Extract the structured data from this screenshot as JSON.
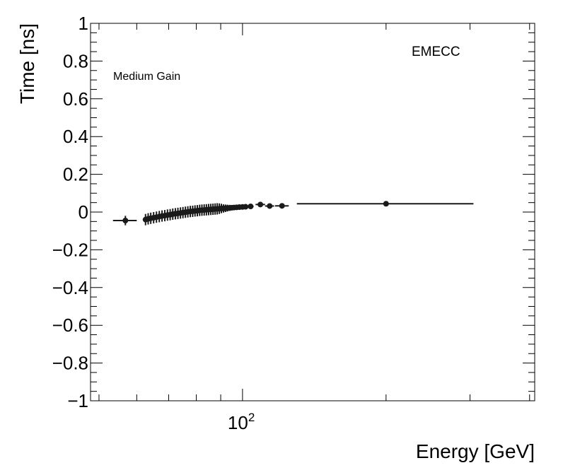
{
  "chart_data": {
    "type": "scatter",
    "title": "",
    "annotations": [
      "EMECC",
      "Medium Gain"
    ],
    "xlabel": "Energy [GeV]",
    "ylabel": "Time [ns]",
    "xscale": "log",
    "xlim": [
      48,
      410
    ],
    "ylim": [
      -1,
      1
    ],
    "x_tick_labels": [
      {
        "value": 100,
        "base": "10",
        "exp": "2"
      }
    ],
    "x_minor_ticks": [
      50,
      60,
      70,
      80,
      90,
      200,
      300,
      400
    ],
    "y_ticks": [
      -1,
      -0.8,
      -0.6,
      -0.4,
      -0.2,
      0,
      0.2,
      0.4,
      0.6,
      0.8,
      1
    ],
    "y_tick_labels": [
      "−1",
      "−0.8",
      "−0.6",
      "−0.4",
      "−0.2",
      "0",
      "0.2",
      "0.4",
      "0.6",
      "0.8",
      "1"
    ],
    "grid": false,
    "marker_color": "#1a1a1a",
    "points": [
      {
        "x": 56.8,
        "y": -0.045,
        "xlo": 53.5,
        "xhi": 60.0,
        "yerr": 0.025
      },
      {
        "x": 62.6,
        "y": -0.04,
        "xlo": 62.3,
        "xhi": 62.9,
        "yerr": 0.03
      },
      {
        "x": 63.4,
        "y": -0.036,
        "xlo": 63.1,
        "xhi": 63.7,
        "yerr": 0.03
      },
      {
        "x": 64.2,
        "y": -0.033,
        "xlo": 63.9,
        "xhi": 64.5,
        "yerr": 0.03
      },
      {
        "x": 65.1,
        "y": -0.03,
        "xlo": 64.8,
        "xhi": 65.4,
        "yerr": 0.03
      },
      {
        "x": 66.0,
        "y": -0.027,
        "xlo": 65.7,
        "xhi": 66.3,
        "yerr": 0.03
      },
      {
        "x": 66.9,
        "y": -0.024,
        "xlo": 66.6,
        "xhi": 67.2,
        "yerr": 0.03
      },
      {
        "x": 67.8,
        "y": -0.021,
        "xlo": 67.5,
        "xhi": 68.1,
        "yerr": 0.03
      },
      {
        "x": 68.7,
        "y": -0.019,
        "xlo": 68.4,
        "xhi": 69.0,
        "yerr": 0.03
      },
      {
        "x": 69.6,
        "y": -0.016,
        "xlo": 69.3,
        "xhi": 69.9,
        "yerr": 0.03
      },
      {
        "x": 70.5,
        "y": -0.014,
        "xlo": 70.2,
        "xhi": 70.8,
        "yerr": 0.03
      },
      {
        "x": 71.4,
        "y": -0.011,
        "xlo": 71.1,
        "xhi": 71.7,
        "yerr": 0.03
      },
      {
        "x": 72.3,
        "y": -0.009,
        "xlo": 72.0,
        "xhi": 72.6,
        "yerr": 0.03
      },
      {
        "x": 73.2,
        "y": -0.007,
        "xlo": 72.9,
        "xhi": 73.5,
        "yerr": 0.03
      },
      {
        "x": 74.1,
        "y": -0.005,
        "xlo": 73.8,
        "xhi": 74.4,
        "yerr": 0.03
      },
      {
        "x": 75.0,
        "y": -0.003,
        "xlo": 74.7,
        "xhi": 75.3,
        "yerr": 0.03
      },
      {
        "x": 75.9,
        "y": -0.001,
        "xlo": 75.6,
        "xhi": 76.2,
        "yerr": 0.03
      },
      {
        "x": 76.8,
        "y": 0.001,
        "xlo": 76.5,
        "xhi": 77.1,
        "yerr": 0.03
      },
      {
        "x": 77.7,
        "y": 0.003,
        "xlo": 77.4,
        "xhi": 78.0,
        "yerr": 0.03
      },
      {
        "x": 78.6,
        "y": 0.004,
        "xlo": 78.3,
        "xhi": 78.9,
        "yerr": 0.03
      },
      {
        "x": 79.5,
        "y": 0.006,
        "xlo": 79.2,
        "xhi": 79.8,
        "yerr": 0.03
      },
      {
        "x": 80.4,
        "y": 0.007,
        "xlo": 80.1,
        "xhi": 80.7,
        "yerr": 0.03
      },
      {
        "x": 81.3,
        "y": 0.009,
        "xlo": 81.0,
        "xhi": 81.6,
        "yerr": 0.03
      },
      {
        "x": 82.2,
        "y": 0.01,
        "xlo": 81.9,
        "xhi": 82.5,
        "yerr": 0.03
      },
      {
        "x": 83.1,
        "y": 0.011,
        "xlo": 82.8,
        "xhi": 83.4,
        "yerr": 0.03
      },
      {
        "x": 84.0,
        "y": 0.012,
        "xlo": 83.7,
        "xhi": 84.3,
        "yerr": 0.03
      },
      {
        "x": 84.9,
        "y": 0.013,
        "xlo": 84.6,
        "xhi": 85.2,
        "yerr": 0.03
      },
      {
        "x": 85.8,
        "y": 0.014,
        "xlo": 85.5,
        "xhi": 86.1,
        "yerr": 0.03
      },
      {
        "x": 86.7,
        "y": 0.015,
        "xlo": 86.4,
        "xhi": 87.0,
        "yerr": 0.03
      },
      {
        "x": 87.6,
        "y": 0.016,
        "xlo": 87.3,
        "xhi": 87.9,
        "yerr": 0.03
      },
      {
        "x": 88.5,
        "y": 0.017,
        "xlo": 88.2,
        "xhi": 88.8,
        "yerr": 0.03
      },
      {
        "x": 89.4,
        "y": 0.018,
        "xlo": 89.1,
        "xhi": 89.7,
        "yerr": 0.028
      },
      {
        "x": 90.3,
        "y": 0.019,
        "xlo": 90.0,
        "xhi": 90.6,
        "yerr": 0.025
      },
      {
        "x": 91.2,
        "y": 0.019,
        "xlo": 90.9,
        "xhi": 91.5,
        "yerr": 0.022
      },
      {
        "x": 92.1,
        "y": 0.02,
        "xlo": 91.8,
        "xhi": 92.4,
        "yerr": 0.02
      },
      {
        "x": 93.0,
        "y": 0.021,
        "xlo": 92.7,
        "xhi": 93.3,
        "yerr": 0.018
      },
      {
        "x": 94.0,
        "y": 0.022,
        "xlo": 93.7,
        "xhi": 94.3,
        "yerr": 0.016
      },
      {
        "x": 95.0,
        "y": 0.023,
        "xlo": 94.7,
        "xhi": 95.3,
        "yerr": 0.014
      },
      {
        "x": 96.0,
        "y": 0.024,
        "xlo": 95.7,
        "xhi": 96.3,
        "yerr": 0.012
      },
      {
        "x": 97.2,
        "y": 0.025,
        "xlo": 96.8,
        "xhi": 97.6,
        "yerr": 0.01
      },
      {
        "x": 98.5,
        "y": 0.026,
        "xlo": 98.0,
        "xhi": 99.0,
        "yerr": 0.008
      },
      {
        "x": 100.0,
        "y": 0.027,
        "xlo": 99.3,
        "xhi": 100.7,
        "yerr": 0.007
      },
      {
        "x": 101.5,
        "y": 0.028,
        "xlo": 100.8,
        "xhi": 102.2,
        "yerr": 0.006
      },
      {
        "x": 104.0,
        "y": 0.03,
        "xlo": 102.5,
        "xhi": 105.5,
        "yerr": 0.006
      },
      {
        "x": 109.0,
        "y": 0.04,
        "xlo": 106.5,
        "xhi": 111.5,
        "yerr": 0.005
      },
      {
        "x": 114.0,
        "y": 0.032,
        "xlo": 111.5,
        "xhi": 116.5,
        "yerr": 0.005
      },
      {
        "x": 121.0,
        "y": 0.033,
        "xlo": 117.0,
        "xhi": 125.0,
        "yerr": 0.005
      },
      {
        "x": 200.0,
        "y": 0.044,
        "xlo": 130.0,
        "xhi": 305.0,
        "yerr": 0.004
      }
    ]
  }
}
